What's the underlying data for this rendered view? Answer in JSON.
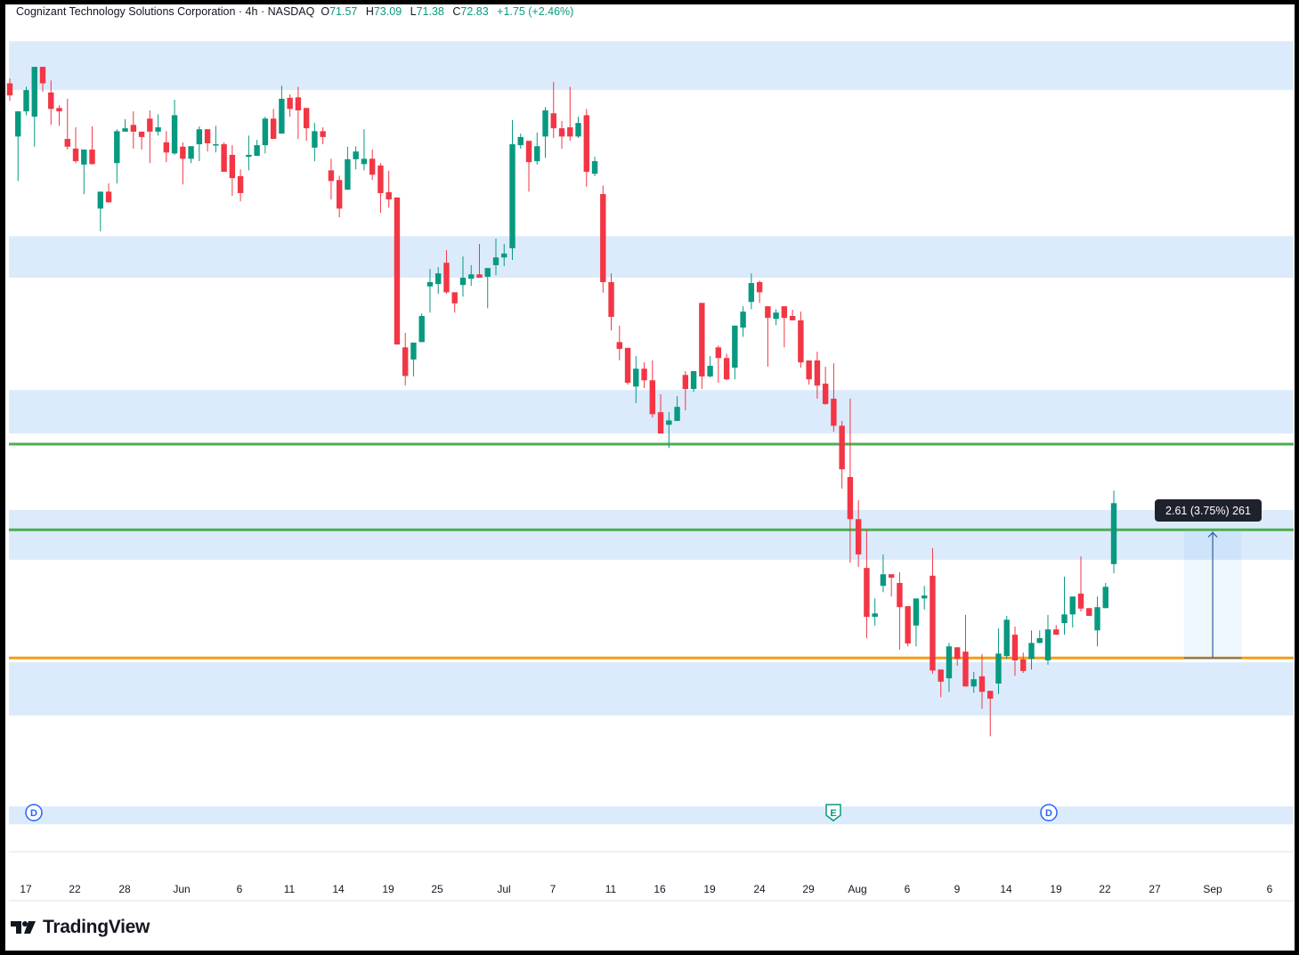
{
  "header": {
    "title": "Cognizant Technology Solutions Corporation · 4h · NASDAQ",
    "open_label": "O",
    "open": "71.57",
    "high_label": "H",
    "high": "73.09",
    "low_label": "L",
    "low": "71.38",
    "close_label": "C",
    "close": "72.83",
    "change": "+1.75 (+2.46%)"
  },
  "colors": {
    "up": "#089981",
    "down": "#f23645",
    "band": "#dcebfb",
    "support_line": "#4caf50",
    "base_line": "#f59d16",
    "measure": "#2f5f9e"
  },
  "logo": {
    "text": "TradingView",
    "icon": "tradingview-logo-icon"
  },
  "measure_label": "2.61 (3.75%) 261",
  "chart_data": {
    "type": "candlestick",
    "interval": "4h",
    "ylim": [
      65.66,
      82.68
    ],
    "grid": false,
    "x_tick_labels": [
      "17",
      "22",
      "28",
      "Jun",
      "6",
      "11",
      "14",
      "19",
      "25",
      "Jul",
      "7",
      "11",
      "16",
      "19",
      "24",
      "29",
      "Aug",
      "6",
      "9",
      "14",
      "19",
      "22",
      "27",
      "Sep",
      "6"
    ],
    "ohlc": [
      [
        81.51,
        81.61,
        81.15,
        81.26
      ],
      [
        80.41,
        80.93,
        79.49,
        80.93
      ],
      [
        80.93,
        81.44,
        80.85,
        81.37
      ],
      [
        80.82,
        81.85,
        80.2,
        81.85
      ],
      [
        81.85,
        81.85,
        81.33,
        81.51
      ],
      [
        81.32,
        81.57,
        80.65,
        80.98
      ],
      [
        81.0,
        81.06,
        80.63,
        80.93
      ],
      [
        80.36,
        81.19,
        80.14,
        80.2
      ],
      [
        80.16,
        80.6,
        79.86,
        79.9
      ],
      [
        79.83,
        80.14,
        79.22,
        80.14
      ],
      [
        80.14,
        80.62,
        79.83,
        79.84
      ],
      [
        78.92,
        79.27,
        78.45,
        79.27
      ],
      [
        79.27,
        79.44,
        79.04,
        79.05
      ],
      [
        79.86,
        80.56,
        79.44,
        80.52
      ],
      [
        80.51,
        80.77,
        80.51,
        80.58
      ],
      [
        80.65,
        80.93,
        80.16,
        80.51
      ],
      [
        80.51,
        80.51,
        80.14,
        80.4
      ],
      [
        80.78,
        80.95,
        79.86,
        80.51
      ],
      [
        80.51,
        80.87,
        80.43,
        80.6
      ],
      [
        80.29,
        80.52,
        79.88,
        80.08
      ],
      [
        80.06,
        81.17,
        80.03,
        80.85
      ],
      [
        80.2,
        80.29,
        79.42,
        79.95
      ],
      [
        79.95,
        80.21,
        79.86,
        80.21
      ],
      [
        80.25,
        80.62,
        79.9,
        80.56
      ],
      [
        80.56,
        80.56,
        80.1,
        80.27
      ],
      [
        80.25,
        80.63,
        80.08,
        80.25
      ],
      [
        80.25,
        80.29,
        79.68,
        79.68
      ],
      [
        80.03,
        80.23,
        79.18,
        79.55
      ],
      [
        79.59,
        79.73,
        79.07,
        79.24
      ],
      [
        79.99,
        80.43,
        79.71,
        80.03
      ],
      [
        80.01,
        80.34,
        80.01,
        80.23
      ],
      [
        80.23,
        80.82,
        80.06,
        80.78
      ],
      [
        80.78,
        80.98,
        80.36,
        80.36
      ],
      [
        80.47,
        81.46,
        80.47,
        81.19
      ],
      [
        81.21,
        81.28,
        80.82,
        80.98
      ],
      [
        81.22,
        81.44,
        80.36,
        80.95
      ],
      [
        81.0,
        81.0,
        80.32,
        80.58
      ],
      [
        80.18,
        80.69,
        79.9,
        80.52
      ],
      [
        80.52,
        80.6,
        80.25,
        80.4
      ],
      [
        79.71,
        79.95,
        79.11,
        79.49
      ],
      [
        79.51,
        79.6,
        78.74,
        78.92
      ],
      [
        79.31,
        80.2,
        79.31,
        79.94
      ],
      [
        79.94,
        80.21,
        79.73,
        80.1
      ],
      [
        79.84,
        80.56,
        79.71,
        79.95
      ],
      [
        79.95,
        80.14,
        79.51,
        79.62
      ],
      [
        79.81,
        79.86,
        78.83,
        79.24
      ],
      [
        79.26,
        79.7,
        78.94,
        79.11
      ],
      [
        79.15,
        79.15,
        76.11,
        76.11
      ],
      [
        76.05,
        76.35,
        75.26,
        75.46
      ],
      [
        75.8,
        76.15,
        75.45,
        76.15
      ],
      [
        76.16,
        76.75,
        76.16,
        76.7
      ],
      [
        77.31,
        77.67,
        76.77,
        77.4
      ],
      [
        77.36,
        77.71,
        77.16,
        77.58
      ],
      [
        77.8,
        78.06,
        77.16,
        77.19
      ],
      [
        77.19,
        77.19,
        76.77,
        76.96
      ],
      [
        77.34,
        77.93,
        77.1,
        77.49
      ],
      [
        77.47,
        77.75,
        77.32,
        77.56
      ],
      [
        77.56,
        78.19,
        77.49,
        77.49
      ],
      [
        77.51,
        77.69,
        76.86,
        77.69
      ],
      [
        77.75,
        78.3,
        77.54,
        77.91
      ],
      [
        77.91,
        78.19,
        77.73,
        77.99
      ],
      [
        78.1,
        80.75,
        77.86,
        80.25
      ],
      [
        80.23,
        80.47,
        80.16,
        80.4
      ],
      [
        80.32,
        80.32,
        79.27,
        79.88
      ],
      [
        79.9,
        80.49,
        79.83,
        80.21
      ],
      [
        80.41,
        81.02,
        79.97,
        80.95
      ],
      [
        80.89,
        81.54,
        80.38,
        80.58
      ],
      [
        80.58,
        80.73,
        80.16,
        80.41
      ],
      [
        80.6,
        81.44,
        80.32,
        80.41
      ],
      [
        80.41,
        80.82,
        80.38,
        80.69
      ],
      [
        80.85,
        80.98,
        79.37,
        79.68
      ],
      [
        79.64,
        79.99,
        79.59,
        79.9
      ],
      [
        79.22,
        79.4,
        77.18,
        77.4
      ],
      [
        77.4,
        77.58,
        76.4,
        76.68
      ],
      [
        76.16,
        76.5,
        75.78,
        76.02
      ],
      [
        76.04,
        76.04,
        75.28,
        75.32
      ],
      [
        75.24,
        75.87,
        74.9,
        75.61
      ],
      [
        75.61,
        75.74,
        75.21,
        75.37
      ],
      [
        75.37,
        75.78,
        74.6,
        74.67
      ],
      [
        74.71,
        75.08,
        74.27,
        74.27
      ],
      [
        74.45,
        74.71,
        73.97,
        74.54
      ],
      [
        74.53,
        75.04,
        74.53,
        74.82
      ],
      [
        75.48,
        75.56,
        74.75,
        75.19
      ],
      [
        75.19,
        75.56,
        75.13,
        75.56
      ],
      [
        76.97,
        76.97,
        75.19,
        75.45
      ],
      [
        75.45,
        75.87,
        75.43,
        75.67
      ],
      [
        76.05,
        76.09,
        75.32,
        75.83
      ],
      [
        75.83,
        75.92,
        75.37,
        75.39
      ],
      [
        75.63,
        76.5,
        75.39,
        76.5
      ],
      [
        76.46,
        76.9,
        76.27,
        76.79
      ],
      [
        76.99,
        77.58,
        76.84,
        77.38
      ],
      [
        77.4,
        77.43,
        76.97,
        77.19
      ],
      [
        76.9,
        76.9,
        75.65,
        76.66
      ],
      [
        76.64,
        76.84,
        76.51,
        76.77
      ],
      [
        76.9,
        76.9,
        76.05,
        76.66
      ],
      [
        76.7,
        76.83,
        76.61,
        76.61
      ],
      [
        76.61,
        76.79,
        75.63,
        75.74
      ],
      [
        75.78,
        75.78,
        75.28,
        75.39
      ],
      [
        75.78,
        75.96,
        74.99,
        75.26
      ],
      [
        75.3,
        75.65,
        74.86,
        74.88
      ],
      [
        74.99,
        75.72,
        74.31,
        74.43
      ],
      [
        74.43,
        74.53,
        73.13,
        73.53
      ],
      [
        73.37,
        74.99,
        71.6,
        72.5
      ],
      [
        72.5,
        72.89,
        71.51,
        71.77
      ],
      [
        71.49,
        72.28,
        70.04,
        70.48
      ],
      [
        70.48,
        70.86,
        70.3,
        70.55
      ],
      [
        71.12,
        71.77,
        70.99,
        71.36
      ],
      [
        71.36,
        71.36,
        70.9,
        71.29
      ],
      [
        71.18,
        71.4,
        69.8,
        70.68
      ],
      [
        70.7,
        70.7,
        69.87,
        69.93
      ],
      [
        70.3,
        70.86,
        69.87,
        70.86
      ],
      [
        70.86,
        71.12,
        70.63,
        70.92
      ],
      [
        71.33,
        71.9,
        69.3,
        69.37
      ],
      [
        69.39,
        69.39,
        68.82,
        69.14
      ],
      [
        69.21,
        69.94,
        68.93,
        69.87
      ],
      [
        69.85,
        69.85,
        69.47,
        69.61
      ],
      [
        69.76,
        70.52,
        69.04,
        69.04
      ],
      [
        69.04,
        69.34,
        68.91,
        69.19
      ],
      [
        69.25,
        69.71,
        68.58,
        68.93
      ],
      [
        68.95,
        68.95,
        68.01,
        68.79
      ],
      [
        69.1,
        70.24,
        68.88,
        69.72
      ],
      [
        69.67,
        70.5,
        69.61,
        70.42
      ],
      [
        70.11,
        70.28,
        69.26,
        69.58
      ],
      [
        69.6,
        69.74,
        69.32,
        69.36
      ],
      [
        69.61,
        70.2,
        69.39,
        69.94
      ],
      [
        69.94,
        70.2,
        69.93,
        70.04
      ],
      [
        69.58,
        70.52,
        69.49,
        70.22
      ],
      [
        70.22,
        70.31,
        70.11,
        70.11
      ],
      [
        70.35,
        71.31,
        70.11,
        70.53
      ],
      [
        70.53,
        70.9,
        70.26,
        70.9
      ],
      [
        70.96,
        71.73,
        70.59,
        70.65
      ],
      [
        70.66,
        70.66,
        70.5,
        70.5
      ],
      [
        70.2,
        70.9,
        69.87,
        70.68
      ],
      [
        70.66,
        71.18,
        70.66,
        71.1
      ],
      [
        71.57,
        73.09,
        71.38,
        72.83
      ]
    ],
    "zones": [
      [
        81.37,
        82.38
      ],
      [
        77.49,
        78.35
      ],
      [
        74.27,
        75.17
      ],
      [
        71.66,
        72.69
      ],
      [
        68.44,
        69.54
      ],
      [
        66.19,
        66.56
      ]
    ],
    "horizontal_lines": [
      {
        "price": 74.05,
        "color": "#4caf50"
      },
      {
        "price": 72.28,
        "color": "#4caf50"
      },
      {
        "price": 69.63,
        "color": "#f59d16"
      }
    ],
    "measure": {
      "from": 69.63,
      "to": 72.24,
      "change": 2.61,
      "percent": 3.75,
      "bars": 261
    },
    "events": [
      {
        "type": "dividend",
        "label": "D"
      },
      {
        "type": "earnings",
        "label": "E"
      },
      {
        "type": "dividend",
        "label": "D"
      }
    ]
  }
}
